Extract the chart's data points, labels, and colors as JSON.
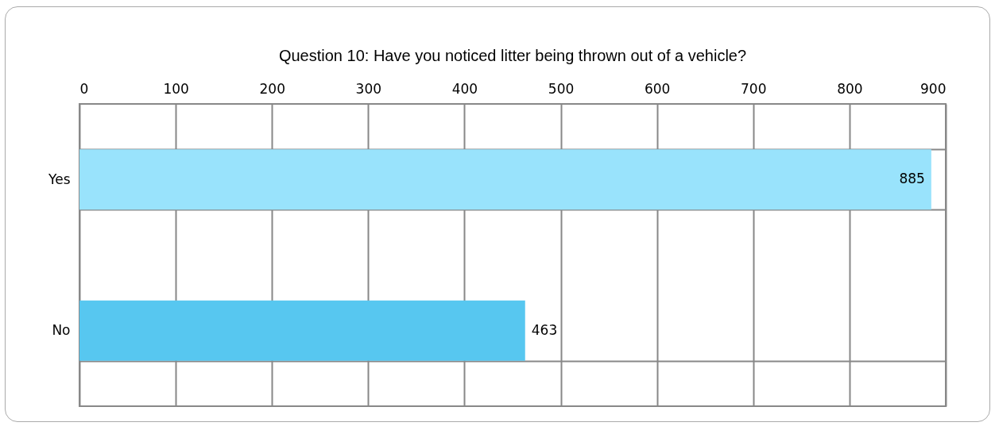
{
  "chart_data": {
    "type": "bar",
    "orientation": "horizontal",
    "title": "Question 10: Have you noticed litter being thrown out of a vehicle?",
    "categories": [
      "Yes",
      "No"
    ],
    "values": [
      885,
      463
    ],
    "colors": [
      "#99e3fc",
      "#57c7f0"
    ],
    "xlim": [
      0,
      900
    ],
    "xticks": [
      0,
      100,
      200,
      300,
      400,
      500,
      600,
      700,
      800,
      900
    ],
    "grid": true,
    "data_labels": true
  }
}
